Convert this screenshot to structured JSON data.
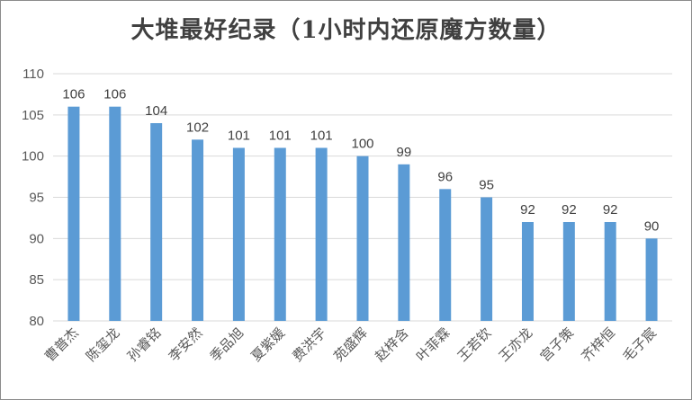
{
  "chart_data": {
    "type": "bar",
    "title": "大堆最好纪录（1小时内还原魔方数量）",
    "categories": [
      "曹普杰",
      "陈玺龙",
      "孙睿铭",
      "李安然",
      "季品旭",
      "夏紫媛",
      "费洪宇",
      "苑盛辉",
      "赵梓含",
      "叶菲霖",
      "王若钦",
      "王亦龙",
      "宫子策",
      "齐梓恒",
      "毛子宸"
    ],
    "values": [
      106,
      106,
      104,
      102,
      101,
      101,
      101,
      100,
      99,
      96,
      95,
      92,
      92,
      92,
      90
    ],
    "ylim": [
      80,
      110
    ],
    "yticks": [
      80,
      85,
      90,
      95,
      100,
      105,
      110
    ],
    "grid": true,
    "bar_color": "#5b9bd5",
    "xlabel": "",
    "ylabel": ""
  }
}
